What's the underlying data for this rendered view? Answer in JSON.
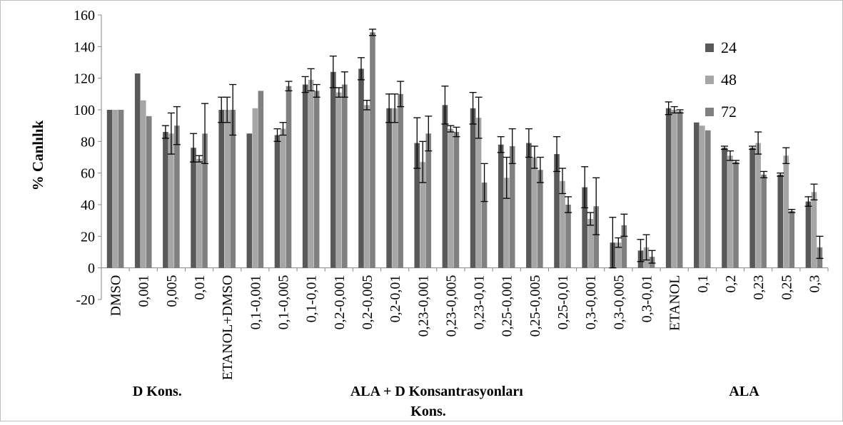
{
  "chart_data": {
    "type": "bar",
    "title": "",
    "ylabel": "% Canlılık",
    "xlabel": "Kons.",
    "ylim": [
      -20,
      160
    ],
    "ytick_step": 20,
    "grid": false,
    "legend_position": "right",
    "categories": [
      "DMSO",
      "0,001",
      "0,005",
      "0,01",
      "ETANOL+DMSO",
      "0,1-0,001",
      "0,1-0,005",
      "0,1-0,01",
      "0,2-0,001",
      "0,2-0,005",
      "0,2-0,01",
      "0,23-0,001",
      "0,23-0,005",
      "0,23-0,01",
      "0,25-0,001",
      "0,25-0,005",
      "0,25-0,01",
      "0,3-0,001",
      "0,3-0,005",
      "0,3-0,01",
      "ETANOL",
      "0,1",
      "0,2",
      "0,23",
      "0,25",
      "0,3"
    ],
    "groups": [
      {
        "label": "D Kons.",
        "categories": [
          "DMSO",
          "0,001",
          "0,005",
          "0,01"
        ]
      },
      {
        "label": "ALA + D Konsantrasyonları",
        "categories": [
          "ETANOL+DMSO",
          "0,1-0,001",
          "0,1-0,005",
          "0,1-0,01",
          "0,2-0,001",
          "0,2-0,005",
          "0,2-0,01",
          "0,23-0,001",
          "0,23-0,005",
          "0,23-0,01",
          "0,25-0,001",
          "0,25-0,005",
          "0,25-0,01",
          "0,3-0,001",
          "0,3-0,005",
          "0,3-0,01"
        ]
      },
      {
        "label": "ALA",
        "categories": [
          "ETANOL",
          "0,1",
          "0,2",
          "0,23",
          "0,25",
          "0,3"
        ]
      }
    ],
    "series": [
      {
        "name": "24",
        "color": "#595959",
        "values": [
          100,
          123,
          86,
          76,
          100,
          85,
          84,
          116,
          124,
          126,
          101,
          79,
          103,
          101,
          78,
          79,
          72,
          51,
          16,
          11,
          101,
          92,
          76,
          76,
          59,
          42
        ],
        "errors": [
          0,
          0,
          4,
          9,
          8,
          0,
          4,
          5,
          10,
          7,
          9,
          16,
          12,
          10,
          5,
          9,
          11,
          13,
          16,
          7,
          4,
          0,
          1,
          1,
          1,
          3
        ]
      },
      {
        "name": "48",
        "color": "#a6a6a6",
        "values": [
          100,
          106,
          85,
          69,
          100,
          101,
          88,
          119,
          111,
          103,
          101,
          67,
          88,
          95,
          57,
          70,
          55,
          31,
          16,
          13,
          100,
          90,
          71,
          79,
          71,
          48
        ],
        "errors": [
          0,
          0,
          13,
          2,
          8,
          0,
          4,
          7,
          3,
          3,
          9,
          13,
          2,
          13,
          13,
          7,
          8,
          4,
          3,
          8,
          2,
          0,
          3,
          7,
          5,
          5
        ]
      },
      {
        "name": "72",
        "color": "#808080",
        "values": [
          100,
          96,
          90,
          85,
          100,
          112,
          115,
          112,
          116,
          149,
          110,
          85,
          86,
          54,
          77,
          62,
          40,
          39,
          27,
          7,
          99,
          87,
          67,
          59,
          36,
          13
        ],
        "errors": [
          0,
          0,
          12,
          19,
          16,
          0,
          3,
          4,
          8,
          2,
          8,
          11,
          3,
          12,
          11,
          8,
          5,
          18,
          7,
          4,
          1,
          0,
          1,
          2,
          1,
          7
        ]
      }
    ]
  }
}
